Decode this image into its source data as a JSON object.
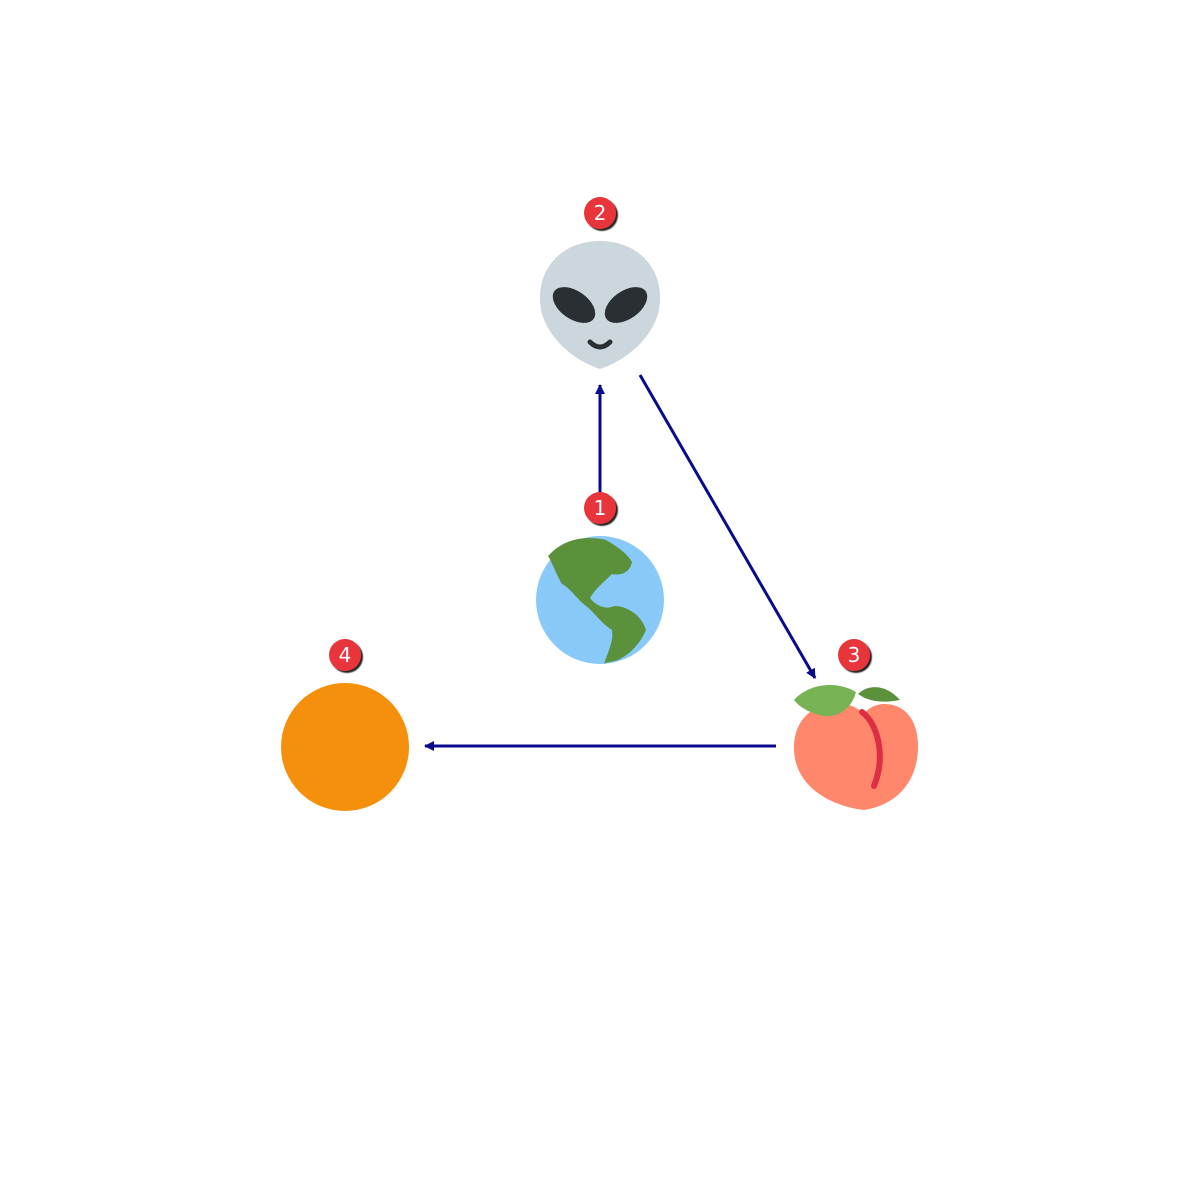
{
  "nodes": [
    {
      "id": "earth",
      "icon": "earth-americas-icon",
      "badge": "1"
    },
    {
      "id": "alien",
      "icon": "alien-icon",
      "badge": "2"
    },
    {
      "id": "peach",
      "icon": "peach-icon",
      "badge": "3"
    },
    {
      "id": "orange-circle",
      "icon": "orange-circle-icon",
      "badge": "4"
    }
  ],
  "edges": [
    {
      "from": "earth",
      "to": "alien"
    },
    {
      "from": "alien",
      "to": "peach"
    },
    {
      "from": "peach",
      "to": "orange-circle"
    }
  ],
  "colors": {
    "arrow": "#0a0a8c",
    "badge": "#e8353b",
    "orange_circle": "#f4900c",
    "ocean": "#88c9f9",
    "land": "#5c913b",
    "alien_face": "#ccd6dd",
    "alien_eyes": "#292f33",
    "peach_body": "#ff886c",
    "peach_line": "#dd2e44",
    "peach_leaf": "#77b255"
  }
}
